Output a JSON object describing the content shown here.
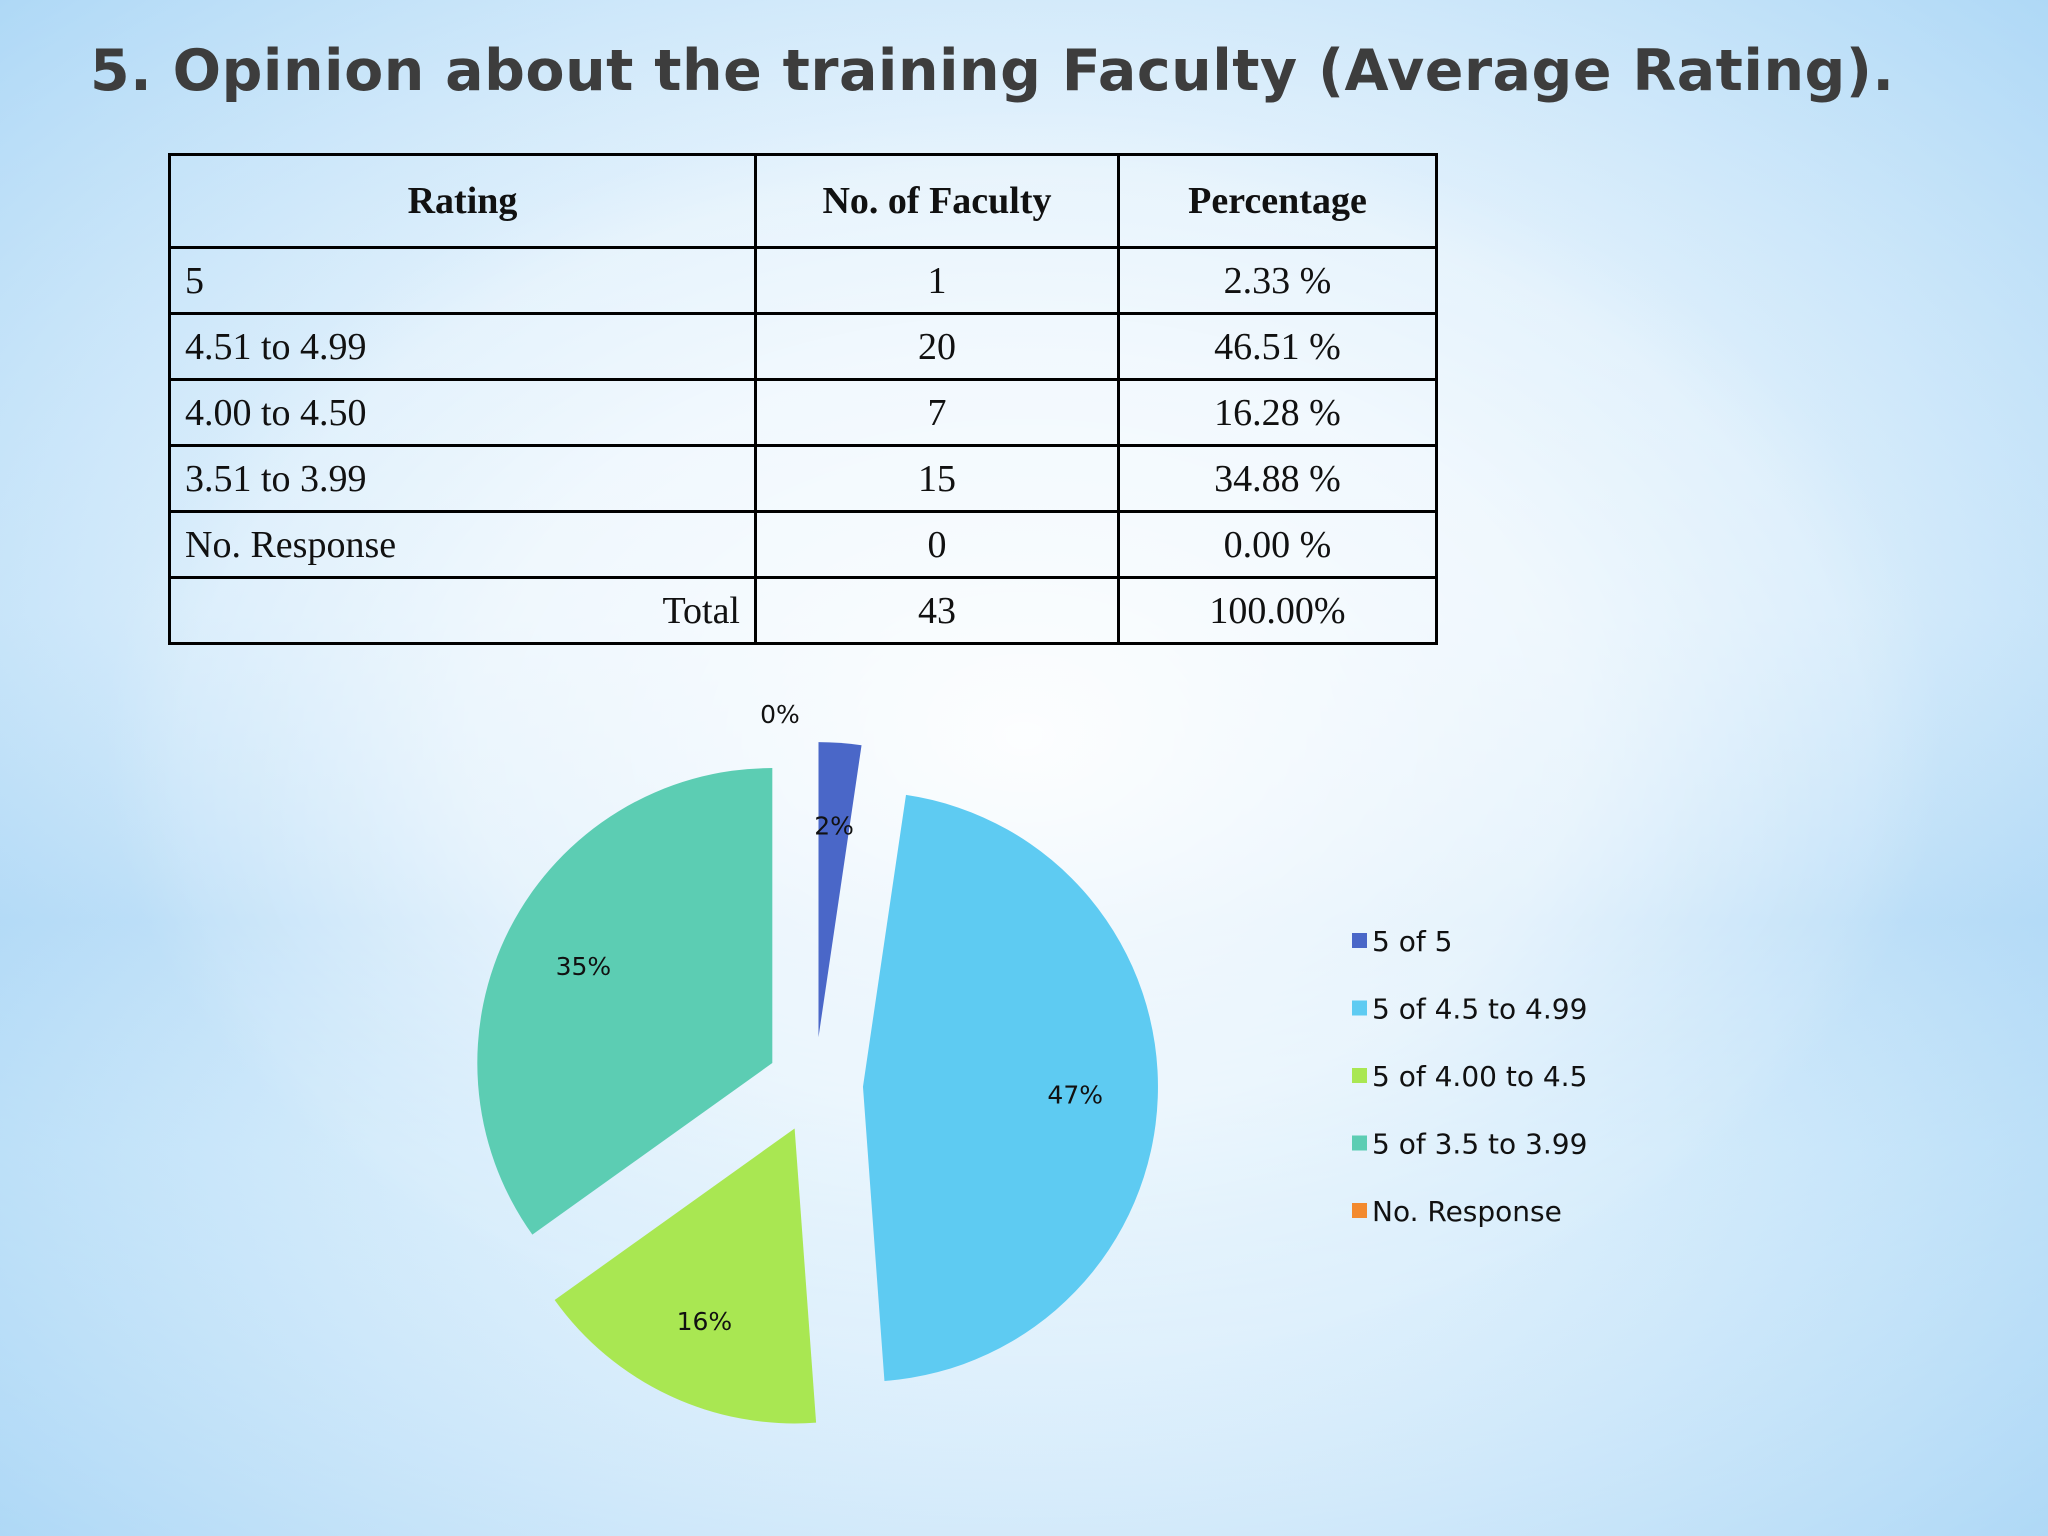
{
  "title": "5. Opinion about the training Faculty (Average Rating).",
  "table": {
    "headers": [
      "Rating",
      "No. of Faculty",
      "Percentage"
    ],
    "rows": [
      [
        "5",
        "1",
        "2.33 %"
      ],
      [
        "4.51 to 4.99",
        "20",
        "46.51 %"
      ],
      [
        "4.00 to 4.50",
        "7",
        "16.28 %"
      ],
      [
        "3.51 to 3.99",
        "15",
        "34.88 %"
      ],
      [
        "No. Response",
        "0",
        "0.00 %"
      ]
    ],
    "total": [
      "Total",
      "43",
      "100.00%"
    ]
  },
  "chart_data": {
    "type": "pie",
    "series": [
      {
        "values": [
          2.33,
          46.51,
          16.28,
          34.88,
          0.0
        ],
        "labels": [
          "2%",
          "47%",
          "16%",
          "35%",
          "0%"
        ]
      }
    ],
    "categories": [
      "5 of 5",
      "5 of 4.5 to 4.99",
      "5 of 4.00 to 4.5",
      "5 of 3.5 to 3.99",
      "No. Response"
    ],
    "colors": [
      "#4a67c8",
      "#5ecbf2",
      "#a9e752",
      "#5ccdb3",
      "#f38a2e"
    ],
    "exploded": true,
    "legend": "right"
  }
}
